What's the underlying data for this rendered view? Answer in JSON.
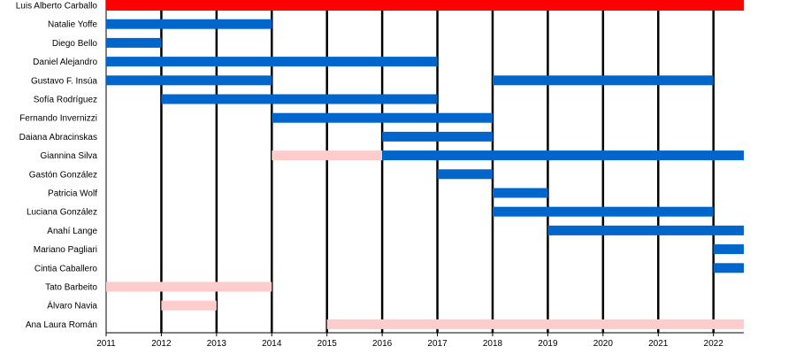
{
  "chart_data": {
    "type": "timeline",
    "title": "",
    "xlabel": "",
    "ylabel": "",
    "xlim": [
      2011,
      2022.55
    ],
    "x_ticks": [
      2011,
      2012,
      2013,
      2014,
      2015,
      2016,
      2017,
      2018,
      2019,
      2020,
      2021,
      2022
    ],
    "grid": "vertical lines at each year",
    "series_colors": {
      "host": "#ff0000",
      "main": "#0066cc",
      "guest": "#ffcccc"
    },
    "members": [
      {
        "name": "Luis Alberto Carballo",
        "periods": [
          {
            "start": 2011,
            "end": 2022.55,
            "role": "host"
          }
        ]
      },
      {
        "name": "Natalie Yoffe",
        "periods": [
          {
            "start": 2011,
            "end": 2014,
            "role": "main"
          }
        ]
      },
      {
        "name": "Diego Bello",
        "periods": [
          {
            "start": 2011,
            "end": 2012,
            "role": "main"
          }
        ]
      },
      {
        "name": "Daniel Alejandro",
        "periods": [
          {
            "start": 2011,
            "end": 2017,
            "role": "main"
          }
        ]
      },
      {
        "name": "Gustavo F. Insúa",
        "periods": [
          {
            "start": 2011,
            "end": 2014,
            "role": "main"
          },
          {
            "start": 2018,
            "end": 2022,
            "role": "main"
          }
        ]
      },
      {
        "name": "Sofía Rodríguez",
        "periods": [
          {
            "start": 2012,
            "end": 2017,
            "role": "main"
          }
        ]
      },
      {
        "name": "Fernando Invernizzi",
        "periods": [
          {
            "start": 2014,
            "end": 2018,
            "role": "main"
          }
        ]
      },
      {
        "name": "Daiana Abracinskas",
        "periods": [
          {
            "start": 2016,
            "end": 2018,
            "role": "main"
          }
        ]
      },
      {
        "name": "Giannina Silva",
        "periods": [
          {
            "start": 2014,
            "end": 2016,
            "role": "guest"
          },
          {
            "start": 2016,
            "end": 2022.55,
            "role": "main"
          }
        ]
      },
      {
        "name": "Gastón González",
        "periods": [
          {
            "start": 2017,
            "end": 2018,
            "role": "main"
          }
        ]
      },
      {
        "name": "Patricia Wolf",
        "periods": [
          {
            "start": 2018,
            "end": 2019,
            "role": "main"
          }
        ]
      },
      {
        "name": "Luciana González",
        "periods": [
          {
            "start": 2018,
            "end": 2022,
            "role": "main"
          }
        ]
      },
      {
        "name": "Anahí Lange",
        "periods": [
          {
            "start": 2019,
            "end": 2022.55,
            "role": "main"
          }
        ]
      },
      {
        "name": "Mariano Pagliari",
        "periods": [
          {
            "start": 2022,
            "end": 2022.55,
            "role": "main"
          }
        ]
      },
      {
        "name": "Cintia Caballero",
        "periods": [
          {
            "start": 2022,
            "end": 2022.55,
            "role": "main"
          }
        ]
      },
      {
        "name": "Tato Barbeito",
        "periods": [
          {
            "start": 2011,
            "end": 2014,
            "role": "guest"
          }
        ]
      },
      {
        "name": "Álvaro Navia",
        "periods": [
          {
            "start": 2012,
            "end": 2013,
            "role": "guest"
          }
        ]
      },
      {
        "name": "Ana Laura Román",
        "periods": [
          {
            "start": 2015,
            "end": 2022.55,
            "role": "guest"
          }
        ]
      }
    ]
  }
}
